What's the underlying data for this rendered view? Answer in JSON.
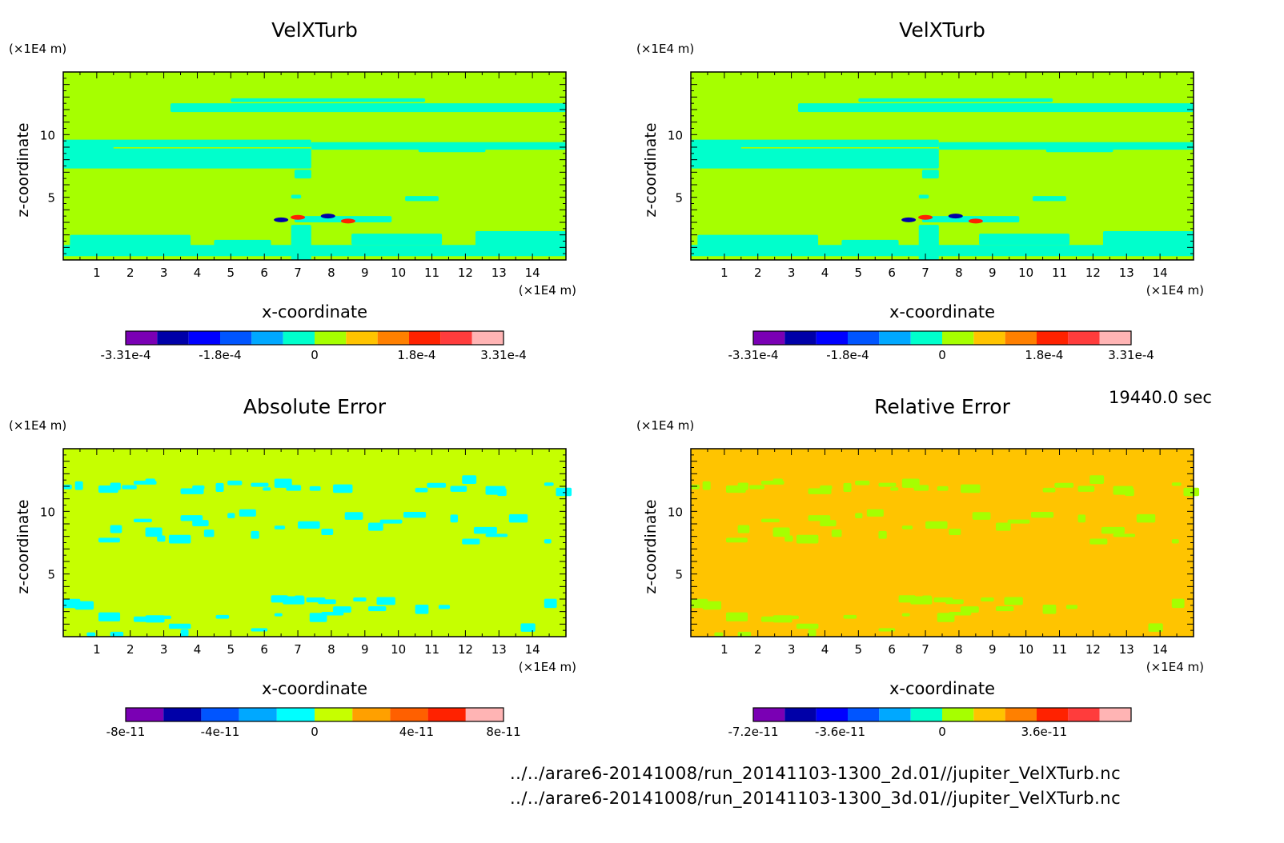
{
  "time_label": "19440.0 sec",
  "footer": {
    "file_2d": "../../arare6-20141008/run_20141103-1300_2d.01//jupiter_VelXTurb.nc",
    "file_3d": "../../arare6-20141008/run_20141103-1300_3d.01//jupiter_VelXTurb.nc"
  },
  "colors": {
    "velx_background": "#a6ff00",
    "velx_feature": "#00ffcc",
    "abs_background": "#c6ff00",
    "abs_feature": "#00ffff",
    "rel_background": "#ffc400",
    "rel_feature": "#a6ff00"
  },
  "chart_data": [
    {
      "type": "heatmap",
      "title": "VelXTurb",
      "xlabel": "x-coordinate",
      "ylabel": "z-coordinate",
      "x_unit": "(×1E4 m)",
      "y_unit": "(×1E4 m)",
      "xlim": [
        0,
        15
      ],
      "ylim": [
        0,
        15
      ],
      "x_ticks": [
        1,
        2,
        3,
        4,
        5,
        6,
        7,
        8,
        9,
        10,
        11,
        12,
        13,
        14
      ],
      "y_ticks": [
        5,
        10
      ],
      "colorbar": {
        "colors": [
          "#7a00b4",
          "#0000a8",
          "#0000ff",
          "#0055ff",
          "#00a8ff",
          "#00ffcc",
          "#a6ff00",
          "#ffc400",
          "#ff8000",
          "#ff2200",
          "#ff3c3c",
          "#ffb4b4"
        ],
        "labels": [
          "-3.31e-4",
          "-1.8e-4",
          "0",
          "1.8e-4",
          "3.31e-4"
        ]
      }
    },
    {
      "type": "heatmap",
      "title": "VelXTurb",
      "xlabel": "x-coordinate",
      "ylabel": "z-coordinate",
      "x_unit": "(×1E4 m)",
      "y_unit": "(×1E4 m)",
      "xlim": [
        0,
        15
      ],
      "ylim": [
        0,
        15
      ],
      "x_ticks": [
        1,
        2,
        3,
        4,
        5,
        6,
        7,
        8,
        9,
        10,
        11,
        12,
        13,
        14
      ],
      "y_ticks": [
        5,
        10
      ],
      "colorbar": {
        "colors": [
          "#7a00b4",
          "#0000a8",
          "#0000ff",
          "#0055ff",
          "#00a8ff",
          "#00ffcc",
          "#a6ff00",
          "#ffc400",
          "#ff8000",
          "#ff2200",
          "#ff3c3c",
          "#ffb4b4"
        ],
        "labels": [
          "-3.31e-4",
          "-1.8e-4",
          "0",
          "1.8e-4",
          "3.31e-4"
        ]
      }
    },
    {
      "type": "heatmap",
      "title": "Absolute Error",
      "xlabel": "x-coordinate",
      "ylabel": "z-coordinate",
      "x_unit": "(×1E4 m)",
      "y_unit": "(×1E4 m)",
      "xlim": [
        0,
        15
      ],
      "ylim": [
        0,
        15
      ],
      "x_ticks": [
        1,
        2,
        3,
        4,
        5,
        6,
        7,
        8,
        9,
        10,
        11,
        12,
        13,
        14
      ],
      "y_ticks": [
        5,
        10
      ],
      "colorbar": {
        "colors": [
          "#7a00b4",
          "#0000a8",
          "#0055ff",
          "#00a8ff",
          "#00ffff",
          "#c6ff00",
          "#ffa000",
          "#ff6000",
          "#ff2200",
          "#ffb4b4"
        ],
        "labels": [
          "-8e-11",
          "-4e-11",
          "0",
          "4e-11",
          "8e-11"
        ]
      }
    },
    {
      "type": "heatmap",
      "title": "Relative Error",
      "xlabel": "x-coordinate",
      "ylabel": "z-coordinate",
      "x_unit": "(×1E4 m)",
      "y_unit": "(×1E4 m)",
      "xlim": [
        0,
        15
      ],
      "ylim": [
        0,
        15
      ],
      "x_ticks": [
        1,
        2,
        3,
        4,
        5,
        6,
        7,
        8,
        9,
        10,
        11,
        12,
        13,
        14
      ],
      "y_ticks": [
        5,
        10
      ],
      "colorbar": {
        "colors": [
          "#7a00b4",
          "#0000a8",
          "#0000ff",
          "#0055ff",
          "#00a8ff",
          "#00ffcc",
          "#a6ff00",
          "#ffc400",
          "#ff8000",
          "#ff2200",
          "#ff3c3c",
          "#ffb4b4"
        ],
        "labels": [
          "-7.2e-11",
          "-3.6e-11",
          "0",
          "3.6e-11"
        ]
      }
    }
  ]
}
